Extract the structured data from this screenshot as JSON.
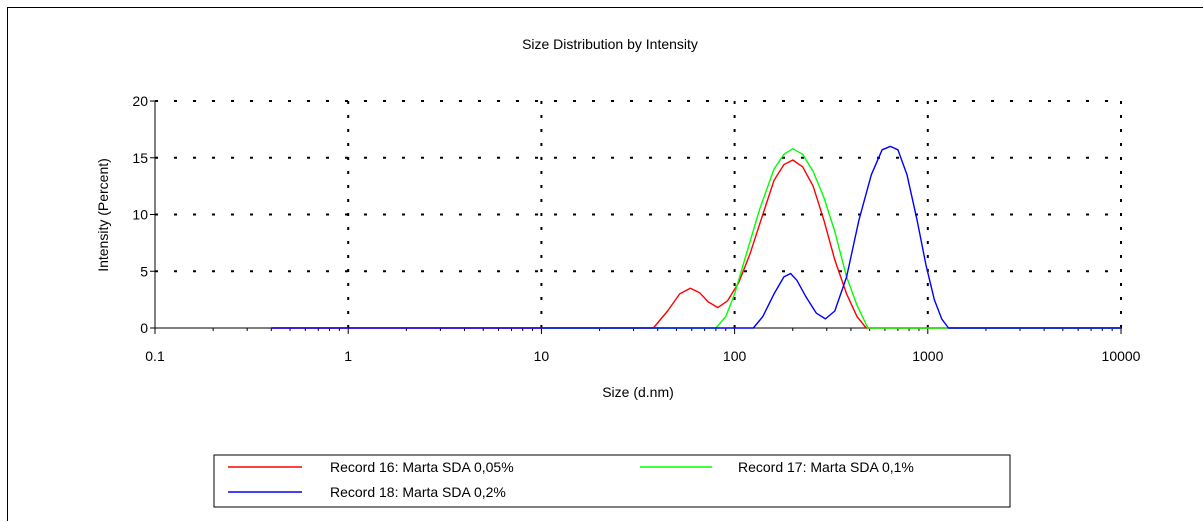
{
  "chart_data": {
    "type": "line",
    "title": "Size Distribution by Intensity",
    "xlabel": "Size (d.nm)",
    "ylabel": "Intensity (Percent)",
    "x_scale": "log",
    "xlim": [
      0.1,
      10000
    ],
    "ylim": [
      0,
      20
    ],
    "x_ticks": [
      "0.1",
      "1",
      "10",
      "100",
      "1000",
      "10000"
    ],
    "y_ticks": [
      "0",
      "5",
      "10",
      "15",
      "20"
    ],
    "grid": true,
    "legend_position": "bottom",
    "series": [
      {
        "name": "Record 16: Marta SDA 0,05%",
        "color": "#ff0000",
        "points": [
          [
            0.4,
            0
          ],
          [
            10,
            0
          ],
          [
            38,
            0
          ],
          [
            45,
            1.5
          ],
          [
            52,
            3
          ],
          [
            59,
            3.5
          ],
          [
            66,
            3.1
          ],
          [
            73,
            2.3
          ],
          [
            82,
            1.8
          ],
          [
            92,
            2.4
          ],
          [
            105,
            4
          ],
          [
            120,
            6.5
          ],
          [
            140,
            10
          ],
          [
            160,
            13
          ],
          [
            180,
            14.4
          ],
          [
            200,
            14.8
          ],
          [
            225,
            14.2
          ],
          [
            255,
            12.5
          ],
          [
            290,
            9.5
          ],
          [
            330,
            6
          ],
          [
            380,
            3
          ],
          [
            430,
            1
          ],
          [
            480,
            0
          ],
          [
            10000,
            0
          ]
        ]
      },
      {
        "name": "Record 17: Marta SDA 0,1%",
        "color": "#00ff00",
        "points": [
          [
            10,
            0
          ],
          [
            80,
            0
          ],
          [
            90,
            1
          ],
          [
            100,
            3
          ],
          [
            115,
            6.5
          ],
          [
            135,
            10.5
          ],
          [
            160,
            14
          ],
          [
            180,
            15.3
          ],
          [
            200,
            15.8
          ],
          [
            225,
            15.3
          ],
          [
            255,
            13.8
          ],
          [
            290,
            11.5
          ],
          [
            330,
            8.5
          ],
          [
            380,
            4.5
          ],
          [
            430,
            2
          ],
          [
            490,
            0
          ],
          [
            10000,
            0
          ]
        ]
      },
      {
        "name": "Record 18: Marta SDA 0,2%",
        "color": "#0000ff",
        "points": [
          [
            0.4,
            0
          ],
          [
            10,
            0
          ],
          [
            125,
            0
          ],
          [
            140,
            1
          ],
          [
            160,
            3
          ],
          [
            180,
            4.5
          ],
          [
            195,
            4.8
          ],
          [
            210,
            4.2
          ],
          [
            235,
            2.7
          ],
          [
            265,
            1.3
          ],
          [
            295,
            0.8
          ],
          [
            330,
            1.5
          ],
          [
            380,
            4.5
          ],
          [
            440,
            9.5
          ],
          [
            510,
            13.5
          ],
          [
            580,
            15.7
          ],
          [
            640,
            16
          ],
          [
            700,
            15.7
          ],
          [
            780,
            13.5
          ],
          [
            880,
            9.5
          ],
          [
            980,
            5.5
          ],
          [
            1080,
            2.5
          ],
          [
            1180,
            0.8
          ],
          [
            1280,
            0
          ],
          [
            10000,
            0
          ]
        ]
      }
    ]
  }
}
